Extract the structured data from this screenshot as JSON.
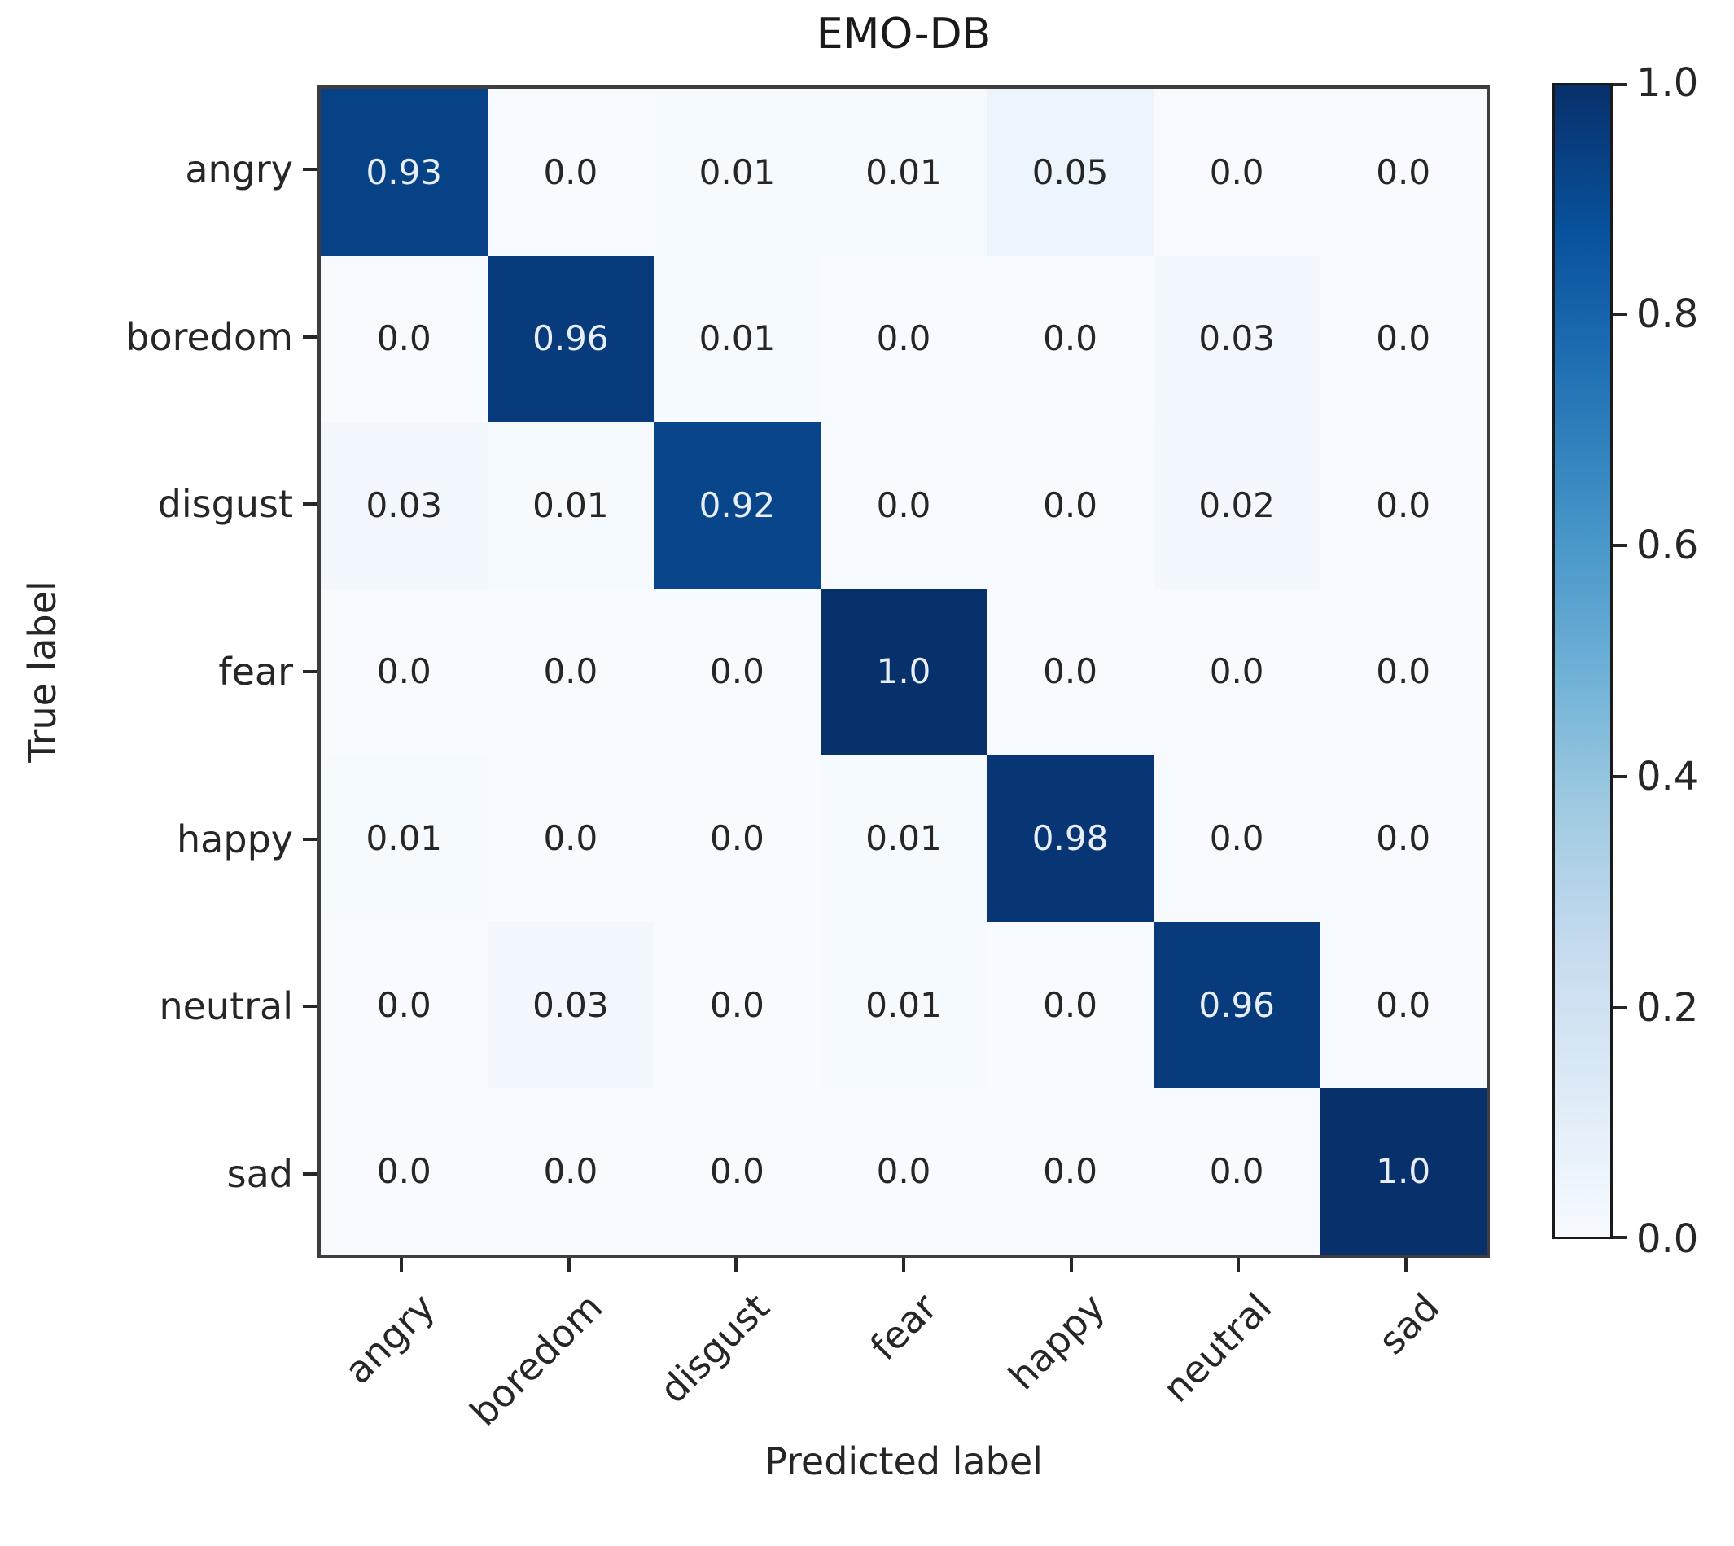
{
  "chart_data": {
    "type": "heatmap",
    "title": "EMO-DB",
    "xlabel": "Predicted label",
    "ylabel": "True label",
    "categories": [
      "angry",
      "boredom",
      "disgust",
      "fear",
      "happy",
      "neutral",
      "sad"
    ],
    "matrix": [
      [
        0.93,
        0.0,
        0.01,
        0.01,
        0.05,
        0.0,
        0.0
      ],
      [
        0.0,
        0.96,
        0.01,
        0.0,
        0.0,
        0.03,
        0.0
      ],
      [
        0.03,
        0.01,
        0.92,
        0.0,
        0.0,
        0.02,
        0.0
      ],
      [
        0.0,
        0.0,
        0.0,
        1.0,
        0.0,
        0.0,
        0.0
      ],
      [
        0.01,
        0.0,
        0.0,
        0.01,
        0.98,
        0.0,
        0.0
      ],
      [
        0.0,
        0.03,
        0.0,
        0.01,
        0.0,
        0.96,
        0.0
      ],
      [
        0.0,
        0.0,
        0.0,
        0.0,
        0.0,
        0.0,
        1.0
      ]
    ],
    "vmin": 0.0,
    "vmax": 1.0,
    "colorbar_ticks": [
      1.0,
      0.8,
      0.6,
      0.4,
      0.2,
      0.0
    ],
    "legend_position": "right-colorbar",
    "grid": false,
    "colormap_name": "Blues",
    "colormap_anchors": [
      "#f7fbff",
      "#deebf7",
      "#c6dbef",
      "#9ecae1",
      "#6baed6",
      "#4292c6",
      "#2171b5",
      "#08519c",
      "#08306b"
    ],
    "cell_text_color_on_light": "#262626",
    "cell_text_color_on_dark": "#e8eef7",
    "axis_color": "#262626",
    "spine_color": "#3d3d3d"
  }
}
